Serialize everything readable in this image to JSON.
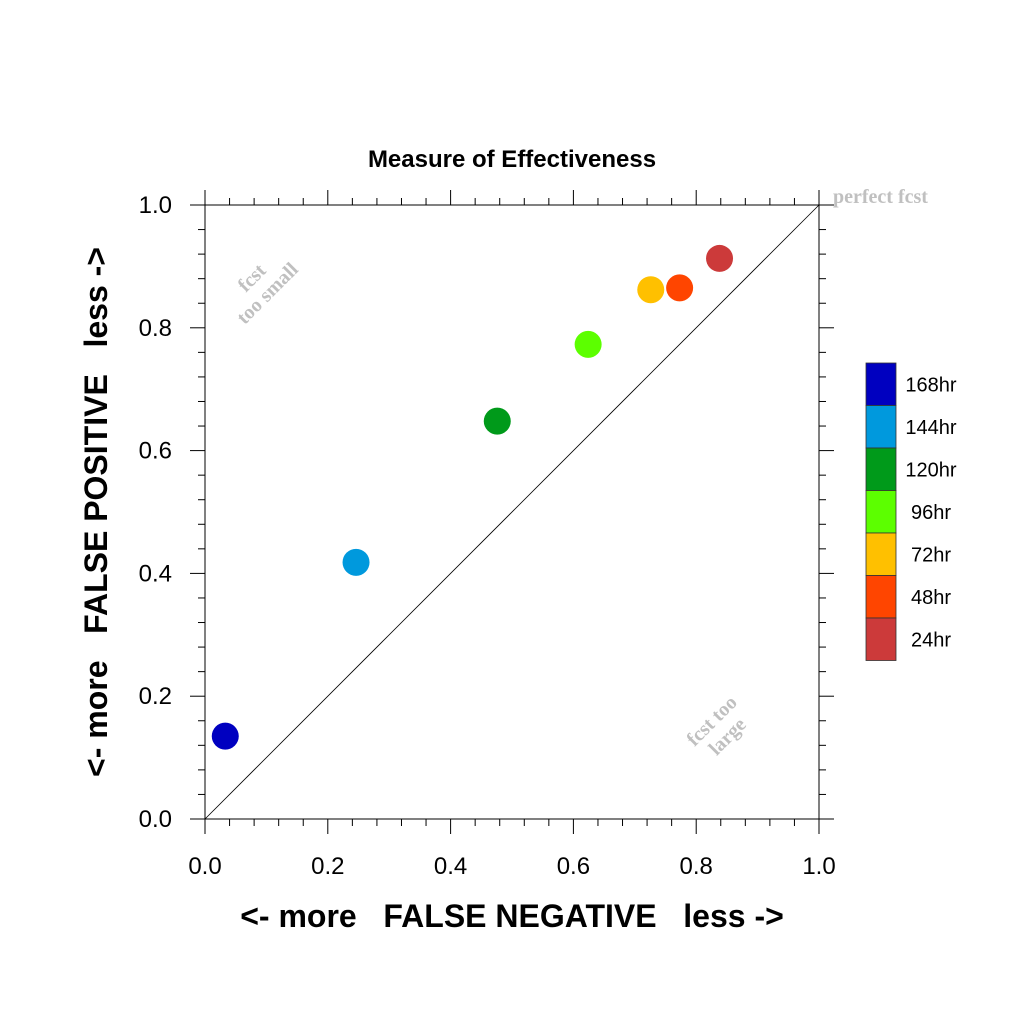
{
  "chart_data": {
    "type": "scatter",
    "title": "Measure of Effectiveness",
    "xlabel": "<- more   FALSE NEGATIVE   less ->",
    "ylabel": "<- more   FALSE POSITIVE   less ->",
    "xlim": [
      0.0,
      1.0
    ],
    "ylim": [
      0.0,
      1.0
    ],
    "xticks": [
      "0.0",
      "0.2",
      "0.4",
      "0.6",
      "0.8",
      "1.0"
    ],
    "yticks": [
      "0.0",
      "0.2",
      "0.4",
      "0.6",
      "0.8",
      "1.0"
    ],
    "grid": false,
    "reference_line": "diagonal",
    "annotations": {
      "perfect": "perfect fcst",
      "small_line1": "fcst",
      "small_line2": "too small",
      "large_line1": "fcst too",
      "large_line2": "large"
    },
    "legend_position": "right",
    "series": [
      {
        "name": "168hr",
        "color": "#0000c0",
        "x": 0.033,
        "y": 0.135
      },
      {
        "name": "144hr",
        "color": "#0099dd",
        "x": 0.246,
        "y": 0.418
      },
      {
        "name": "120hr",
        "color": "#009a1a",
        "x": 0.476,
        "y": 0.648
      },
      {
        "name": "96hr",
        "color": "#5cff00",
        "x": 0.624,
        "y": 0.773
      },
      {
        "name": "72hr",
        "color": "#ffc000",
        "x": 0.726,
        "y": 0.862
      },
      {
        "name": "48hr",
        "color": "#ff4500",
        "x": 0.773,
        "y": 0.865
      },
      {
        "name": "24hr",
        "color": "#cc3a3a",
        "x": 0.838,
        "y": 0.913
      }
    ]
  }
}
